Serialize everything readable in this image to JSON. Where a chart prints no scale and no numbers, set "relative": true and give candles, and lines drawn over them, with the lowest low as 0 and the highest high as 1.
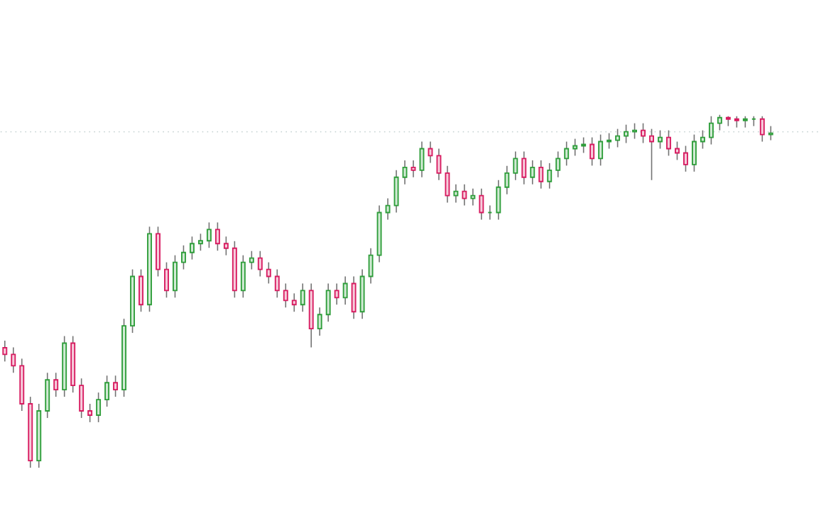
{
  "chart_data": {
    "type": "candlestick",
    "relative": true,
    "tick_labels": false,
    "categories": [
      null,
      null,
      null,
      null,
      null,
      null,
      null,
      null,
      null,
      null,
      null,
      null,
      null,
      null,
      null,
      null,
      null,
      null,
      null,
      null,
      null,
      null,
      null,
      null,
      null,
      null,
      null,
      null,
      null,
      null,
      null,
      null,
      null,
      null,
      null,
      null,
      null,
      null,
      null,
      null,
      null,
      null,
      null,
      null,
      null,
      null,
      null,
      null,
      null,
      null,
      null,
      null,
      null,
      null,
      null,
      null,
      null,
      null,
      null,
      null,
      null,
      null,
      null,
      null,
      null,
      null,
      null,
      null,
      null,
      null,
      null,
      null,
      null,
      null,
      null,
      null,
      null,
      null,
      null,
      null,
      null,
      null,
      null,
      null,
      null,
      null,
      null,
      null,
      null,
      null,
      null
    ],
    "ohlc": [
      [
        0.34,
        0.36,
        0.301,
        0.321
      ],
      [
        0.321,
        0.341,
        0.269,
        0.289
      ],
      [
        0.289,
        0.309,
        0.161,
        0.181
      ],
      [
        0.181,
        0.201,
        0.0,
        0.02
      ],
      [
        0.02,
        0.181,
        0.0,
        0.161
      ],
      [
        0.161,
        0.269,
        0.141,
        0.249
      ],
      [
        0.249,
        0.269,
        0.201,
        0.221
      ],
      [
        0.221,
        0.373,
        0.201,
        0.353
      ],
      [
        0.353,
        0.373,
        0.213,
        0.233
      ],
      [
        0.233,
        0.253,
        0.141,
        0.161
      ],
      [
        0.161,
        0.181,
        0.129,
        0.149
      ],
      [
        0.149,
        0.213,
        0.129,
        0.193
      ],
      [
        0.193,
        0.261,
        0.173,
        0.241
      ],
      [
        0.241,
        0.261,
        0.201,
        0.221
      ],
      [
        0.221,
        0.422,
        0.201,
        0.402
      ],
      [
        0.402,
        0.562,
        0.382,
        0.542
      ],
      [
        0.542,
        0.562,
        0.442,
        0.462
      ],
      [
        0.462,
        0.683,
        0.442,
        0.663
      ],
      [
        0.663,
        0.683,
        0.542,
        0.562
      ],
      [
        0.562,
        0.582,
        0.482,
        0.502
      ],
      [
        0.502,
        0.602,
        0.482,
        0.582
      ],
      [
        0.582,
        0.63,
        0.562,
        0.61
      ],
      [
        0.61,
        0.655,
        0.59,
        0.635
      ],
      [
        0.635,
        0.663,
        0.615,
        0.643
      ],
      [
        0.643,
        0.695,
        0.623,
        0.675
      ],
      [
        0.675,
        0.695,
        0.615,
        0.635
      ],
      [
        0.635,
        0.655,
        0.602,
        0.622
      ],
      [
        0.622,
        0.642,
        0.482,
        0.502
      ],
      [
        0.502,
        0.602,
        0.482,
        0.582
      ],
      [
        0.582,
        0.614,
        0.562,
        0.594
      ],
      [
        0.594,
        0.614,
        0.542,
        0.562
      ],
      [
        0.562,
        0.582,
        0.522,
        0.542
      ],
      [
        0.542,
        0.562,
        0.482,
        0.502
      ],
      [
        0.502,
        0.522,
        0.454,
        0.474
      ],
      [
        0.474,
        0.494,
        0.442,
        0.462
      ],
      [
        0.462,
        0.522,
        0.442,
        0.502
      ],
      [
        0.502,
        0.522,
        0.341,
        0.394
      ],
      [
        0.394,
        0.454,
        0.374,
        0.434
      ],
      [
        0.434,
        0.522,
        0.414,
        0.502
      ],
      [
        0.502,
        0.522,
        0.462,
        0.482
      ],
      [
        0.482,
        0.542,
        0.462,
        0.522
      ],
      [
        0.522,
        0.542,
        0.422,
        0.442
      ],
      [
        0.442,
        0.562,
        0.422,
        0.542
      ],
      [
        0.542,
        0.622,
        0.522,
        0.602
      ],
      [
        0.602,
        0.743,
        0.582,
        0.723
      ],
      [
        0.723,
        0.763,
        0.703,
        0.743
      ],
      [
        0.743,
        0.843,
        0.723,
        0.823
      ],
      [
        0.823,
        0.871,
        0.803,
        0.851
      ],
      [
        0.851,
        0.871,
        0.823,
        0.843
      ],
      [
        0.843,
        0.924,
        0.823,
        0.904
      ],
      [
        0.904,
        0.924,
        0.864,
        0.884
      ],
      [
        0.884,
        0.904,
        0.815,
        0.835
      ],
      [
        0.835,
        0.855,
        0.751,
        0.771
      ],
      [
        0.771,
        0.803,
        0.751,
        0.783
      ],
      [
        0.783,
        0.803,
        0.743,
        0.763
      ],
      [
        0.763,
        0.791,
        0.743,
        0.771
      ],
      [
        0.771,
        0.791,
        0.703,
        0.723
      ],
      [
        0.723,
        0.743,
        0.703,
        0.723
      ],
      [
        0.723,
        0.815,
        0.703,
        0.795
      ],
      [
        0.795,
        0.855,
        0.775,
        0.835
      ],
      [
        0.835,
        0.896,
        0.815,
        0.876
      ],
      [
        0.876,
        0.896,
        0.803,
        0.823
      ],
      [
        0.823,
        0.871,
        0.803,
        0.851
      ],
      [
        0.851,
        0.871,
        0.791,
        0.811
      ],
      [
        0.811,
        0.863,
        0.791,
        0.843
      ],
      [
        0.843,
        0.896,
        0.823,
        0.876
      ],
      [
        0.876,
        0.924,
        0.856,
        0.904
      ],
      [
        0.904,
        0.932,
        0.884,
        0.912
      ],
      [
        0.912,
        0.936,
        0.892,
        0.916
      ],
      [
        0.916,
        0.936,
        0.856,
        0.876
      ],
      [
        0.876,
        0.944,
        0.856,
        0.924
      ],
      [
        0.924,
        0.948,
        0.904,
        0.928
      ],
      [
        0.928,
        0.96,
        0.908,
        0.94
      ],
      [
        0.94,
        0.972,
        0.92,
        0.952
      ],
      [
        0.952,
        0.976,
        0.932,
        0.956
      ],
      [
        0.956,
        0.976,
        0.92,
        0.94
      ],
      [
        0.94,
        0.96,
        0.815,
        0.924
      ],
      [
        0.924,
        0.956,
        0.904,
        0.936
      ],
      [
        0.936,
        0.956,
        0.884,
        0.904
      ],
      [
        0.904,
        0.924,
        0.872,
        0.892
      ],
      [
        0.892,
        0.912,
        0.839,
        0.859
      ],
      [
        0.859,
        0.944,
        0.839,
        0.924
      ],
      [
        0.924,
        0.956,
        0.904,
        0.936
      ],
      [
        0.936,
        0.996,
        0.916,
        0.976
      ],
      [
        0.976,
        1.0,
        0.956,
        0.992
      ],
      [
        0.992,
        0.996,
        0.968,
        0.988
      ],
      [
        0.988,
        0.996,
        0.964,
        0.984
      ],
      [
        0.984,
        0.996,
        0.964,
        0.988
      ],
      [
        0.988,
        0.996,
        0.968,
        0.988
      ],
      [
        0.988,
        0.996,
        0.924,
        0.944
      ],
      [
        0.944,
        0.968,
        0.928,
        0.948
      ]
    ],
    "colors": [
      "#d81b60",
      "#d81b60",
      "#d81b60",
      "#d81b60",
      "#2e9e3a",
      "#2e9e3a",
      "#d81b60",
      "#2e9e3a",
      "#d81b60",
      "#d81b60",
      "#d81b60",
      "#2e9e3a",
      "#2e9e3a",
      "#d81b60",
      "#2e9e3a",
      "#2e9e3a",
      "#d81b60",
      "#2e9e3a",
      "#d81b60",
      "#d81b60",
      "#2e9e3a",
      "#2e9e3a",
      "#2e9e3a",
      "#2e9e3a",
      "#2e9e3a",
      "#d81b60",
      "#d81b60",
      "#d81b60",
      "#2e9e3a",
      "#2e9e3a",
      "#d81b60",
      "#d81b60",
      "#d81b60",
      "#d81b60",
      "#d81b60",
      "#2e9e3a",
      "#d81b60",
      "#2e9e3a",
      "#2e9e3a",
      "#d81b60",
      "#2e9e3a",
      "#d81b60",
      "#2e9e3a",
      "#2e9e3a",
      "#2e9e3a",
      "#2e9e3a",
      "#2e9e3a",
      "#2e9e3a",
      "#d81b60",
      "#2e9e3a",
      "#d81b60",
      "#d81b60",
      "#d81b60",
      "#2e9e3a",
      "#d81b60",
      "#2e9e3a",
      "#d81b60",
      "#2e9e3a",
      "#2e9e3a",
      "#2e9e3a",
      "#2e9e3a",
      "#d81b60",
      "#2e9e3a",
      "#d81b60",
      "#2e9e3a",
      "#2e9e3a",
      "#2e9e3a",
      "#2e9e3a",
      "#2e9e3a",
      "#d81b60",
      "#2e9e3a",
      "#2e9e3a",
      "#2e9e3a",
      "#2e9e3a",
      "#2e9e3a",
      "#d81b60",
      "#d81b60",
      "#2e9e3a",
      "#d81b60",
      "#d81b60",
      "#d81b60",
      "#2e9e3a",
      "#2e9e3a",
      "#2e9e3a",
      "#2e9e3a",
      "#d81b60",
      "#d81b60",
      "#2e9e3a",
      "#2e9e3a",
      "#d81b60",
      "#2e9e3a"
    ],
    "ref_lines": [
      {
        "axis": "y",
        "value": 0.952,
        "line_style": "dotted",
        "color": "#c8d4d4"
      }
    ]
  }
}
